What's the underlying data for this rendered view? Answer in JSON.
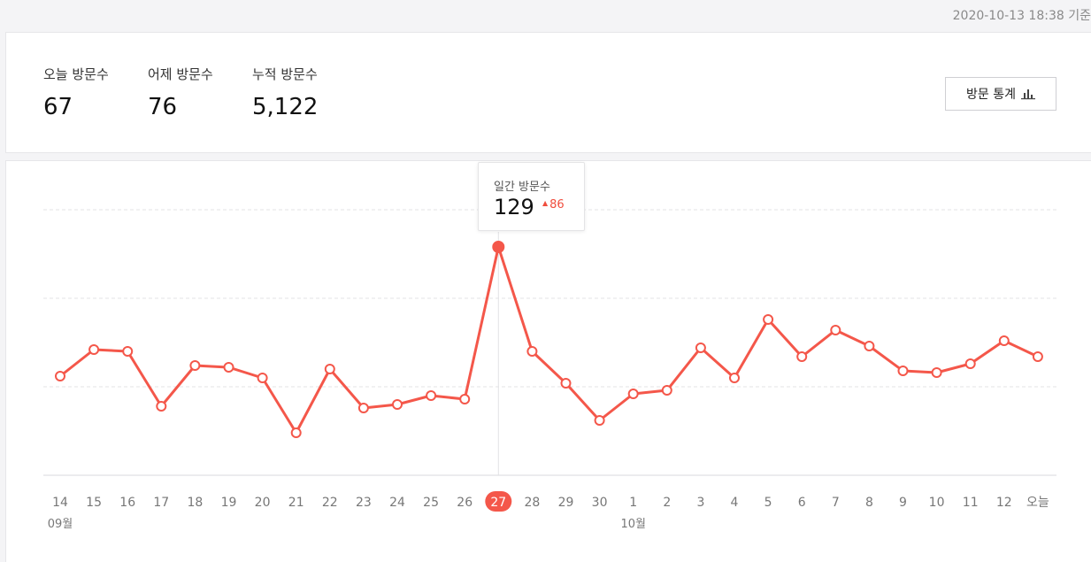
{
  "header": {
    "timestamp": "2020-10-13 18:38 기준"
  },
  "summary": {
    "today": {
      "label": "오늘 방문수",
      "value": "67"
    },
    "yesterday": {
      "label": "어제 방문수",
      "value": "76"
    },
    "total": {
      "label": "누적 방문수",
      "value": "5,122"
    },
    "stats_button": {
      "label": "방문 통계",
      "icon": "bar-chart-icon"
    }
  },
  "tooltip": {
    "label": "일간 방문수",
    "value": "129",
    "delta": "86",
    "delta_icon": "up-triangle-icon"
  },
  "colors": {
    "line": "#f4574a",
    "grid": "#e3e3e6",
    "axis_label": "#777777",
    "highlight": "#f4574a"
  },
  "chart_data": {
    "type": "line",
    "categories": [
      "14",
      "15",
      "16",
      "17",
      "18",
      "19",
      "20",
      "21",
      "22",
      "23",
      "24",
      "25",
      "26",
      "27",
      "28",
      "29",
      "30",
      "1",
      "2",
      "3",
      "4",
      "5",
      "6",
      "7",
      "8",
      "9",
      "10",
      "11",
      "12",
      "오늘"
    ],
    "month_labels": [
      {
        "index": 0,
        "label": "09월"
      },
      {
        "index": 17,
        "label": "10월"
      }
    ],
    "series": [
      {
        "values": [
          56,
          71,
          70,
          39,
          62,
          61,
          55,
          24,
          60,
          38,
          40,
          45,
          43,
          129,
          70,
          52,
          31,
          46,
          48,
          72,
          55,
          88,
          67,
          82,
          73,
          59,
          58,
          63,
          76,
          67
        ]
      }
    ],
    "highlight_index": 13,
    "ylim": [
      0,
      150
    ],
    "grid": true
  }
}
